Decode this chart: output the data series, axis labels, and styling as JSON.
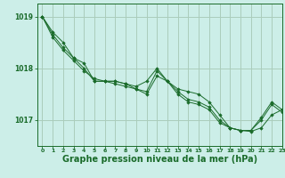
{
  "bg_color": "#cceee8",
  "grid_color": "#aaccbb",
  "line_color": "#1a6b2a",
  "marker_color": "#1a6b2a",
  "xlabel": "Graphe pression niveau de la mer (hPa)",
  "xlabel_fontsize": 7,
  "xlim": [
    -0.5,
    23
  ],
  "ylim": [
    1016.5,
    1019.25
  ],
  "yticks": [
    1017,
    1018,
    1019
  ],
  "xticks": [
    0,
    1,
    2,
    3,
    4,
    5,
    6,
    7,
    8,
    9,
    10,
    11,
    12,
    13,
    14,
    15,
    16,
    17,
    18,
    19,
    20,
    21,
    22,
    23
  ],
  "series": [
    [
      1019.0,
      1018.7,
      1018.5,
      1018.2,
      1018.1,
      1017.75,
      1017.75,
      1017.75,
      1017.7,
      1017.65,
      1017.75,
      1018.0,
      1017.75,
      1017.6,
      1017.55,
      1017.5,
      1017.35,
      1017.1,
      1016.85,
      1016.8,
      1016.8,
      1017.05,
      1017.35,
      1017.2
    ],
    [
      1019.0,
      1018.65,
      1018.4,
      1018.2,
      1018.0,
      1017.75,
      1017.75,
      1017.75,
      1017.7,
      1017.6,
      1017.55,
      1017.95,
      1017.75,
      1017.55,
      1017.4,
      1017.35,
      1017.25,
      1017.0,
      1016.85,
      1016.8,
      1016.8,
      1017.0,
      1017.3,
      1017.15
    ],
    [
      1019.0,
      1018.6,
      1018.35,
      1018.15,
      1017.95,
      1017.8,
      1017.75,
      1017.7,
      1017.65,
      1017.6,
      1017.5,
      1017.85,
      1017.75,
      1017.5,
      1017.35,
      1017.3,
      1017.2,
      1016.95,
      1016.85,
      1016.8,
      1016.78,
      1016.85,
      1017.1,
      1017.2
    ]
  ]
}
